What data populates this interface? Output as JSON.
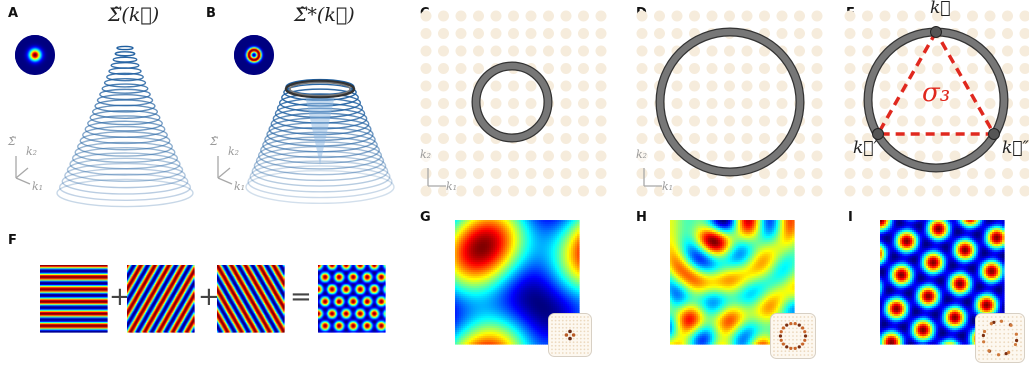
{
  "panels": {
    "A": {
      "label": "A",
      "title": "Σ̃(k⃗)",
      "axis_z": "Σ̃",
      "axis_1": "k₁",
      "axis_2": "k₂"
    },
    "B": {
      "label": "B",
      "title": "Σ̃*(k⃗)",
      "axis_z": "Σ̃",
      "axis_1": "k₁",
      "axis_2": "k₂"
    },
    "C": {
      "label": "C",
      "axis_1": "k₁",
      "axis_2": "k₂"
    },
    "D": {
      "label": "D",
      "axis_1": "k₁",
      "axis_2": "k₂"
    },
    "E": {
      "label": "E",
      "vertex_top": "k⃗",
      "vertex_left": "k⃗′",
      "vertex_right": "k⃗″",
      "triangle_label": "σ₃"
    },
    "F": {
      "label": "F",
      "plus": "+",
      "equals": "="
    },
    "G": {
      "label": "G"
    },
    "H": {
      "label": "H"
    },
    "I": {
      "label": "I"
    }
  },
  "colors": {
    "blue": "#1f5fa0",
    "ring": "#777777",
    "dots": "#f6ecdc",
    "triangle": "#e0281e",
    "vertex": "#555555"
  }
}
